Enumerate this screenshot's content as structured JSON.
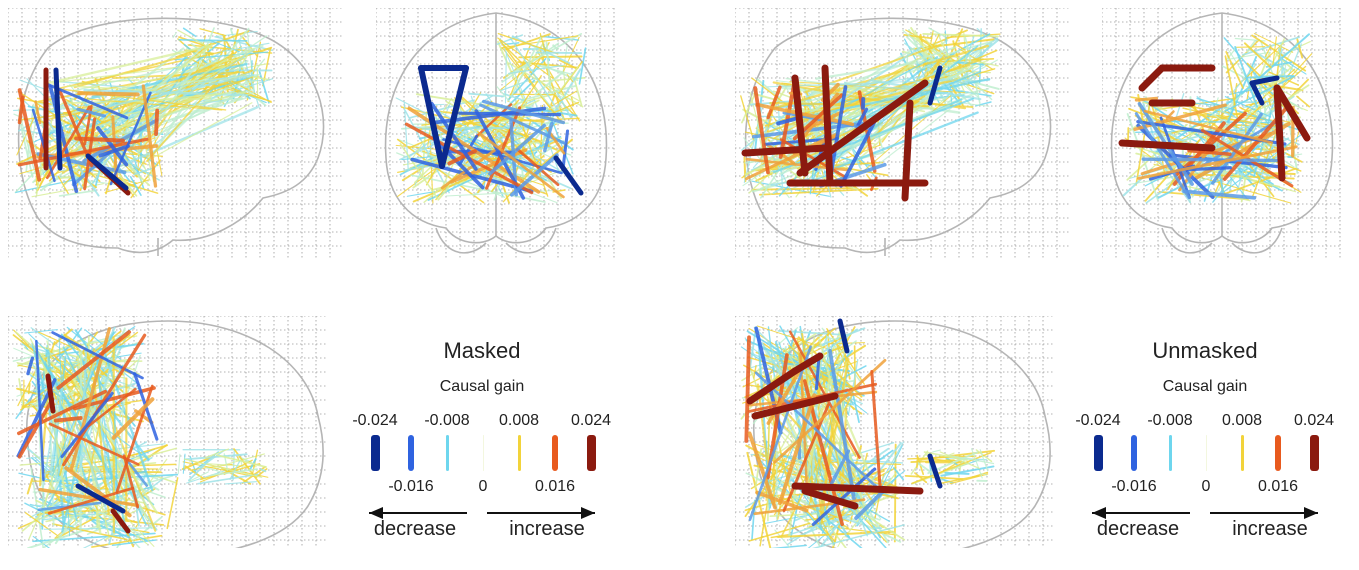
{
  "legends": [
    {
      "title": "Masked",
      "subtitle": "Causal gain",
      "top_ticks": [
        "-0.024",
        "-0.008",
        "0.008",
        "0.024"
      ],
      "bottom_ticks": [
        "-0.016",
        "0",
        "0.016"
      ],
      "swatches": [
        {
          "label": "-0.024",
          "color": "#0b2a8f"
        },
        {
          "label": "-0.016",
          "color": "#2f63e0"
        },
        {
          "label": "-0.008",
          "color": "#6ed6ee"
        },
        {
          "label": "0",
          "color": "#f3f7df"
        },
        {
          "label": "0.008",
          "color": "#f2d33a"
        },
        {
          "label": "0.016",
          "color": "#e85a1e"
        },
        {
          "label": "0.024",
          "color": "#8b1a0f"
        }
      ],
      "decrease_label": "decrease",
      "increase_label": "increase"
    },
    {
      "title": "Unmasked",
      "subtitle": "Causal gain",
      "top_ticks": [
        "-0.024",
        "-0.008",
        "0.008",
        "0.024"
      ],
      "bottom_ticks": [
        "-0.016",
        "0",
        "0.016"
      ],
      "swatches": [
        {
          "label": "-0.024",
          "color": "#0b2a8f"
        },
        {
          "label": "-0.016",
          "color": "#2f63e0"
        },
        {
          "label": "-0.008",
          "color": "#6ed6ee"
        },
        {
          "label": "0",
          "color": "#f3f7df"
        },
        {
          "label": "0.008",
          "color": "#f2d33a"
        },
        {
          "label": "0.016",
          "color": "#e85a1e"
        },
        {
          "label": "0.024",
          "color": "#8b1a0f"
        }
      ],
      "decrease_label": "decrease",
      "increase_label": "increase"
    }
  ],
  "palette": {
    "strong_negative": "#0b2a8f",
    "negative": "#2f63e0",
    "weak_negative": "#6ed6ee",
    "neutral": "#f3f7df",
    "weak_positive": "#f2d33a",
    "positive": "#e85a1e",
    "strong_positive": "#8b1a0f",
    "outline": "#b5b5b5",
    "grid": "#9a9a9a"
  }
}
